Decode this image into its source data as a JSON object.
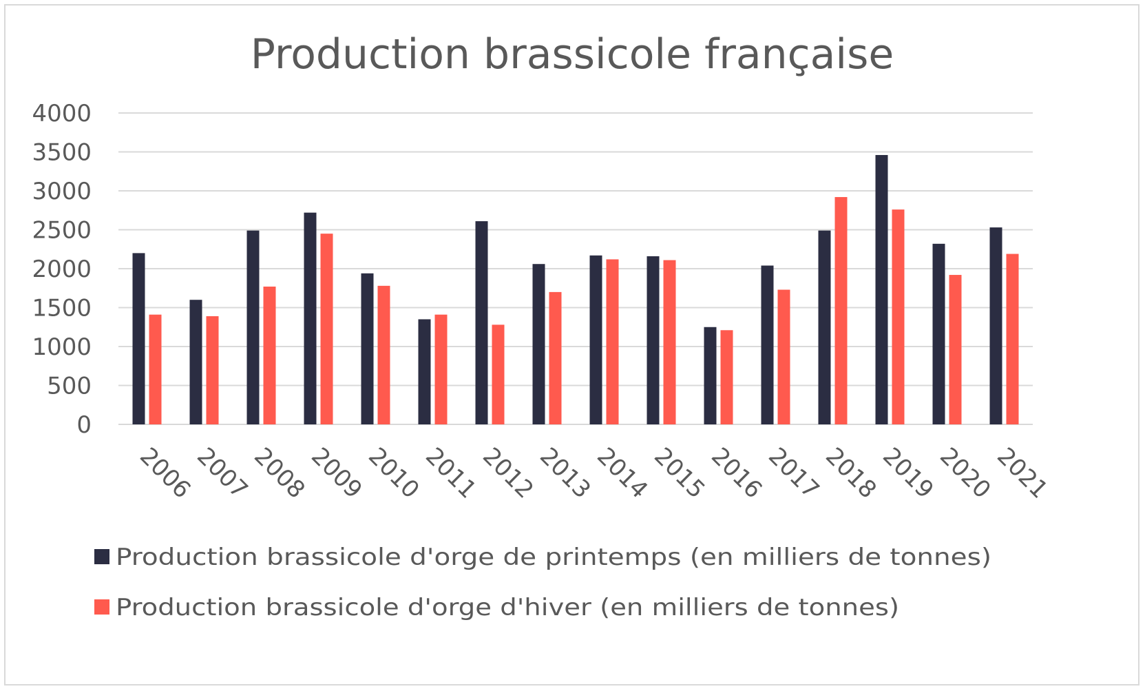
{
  "chart_data": {
    "type": "bar",
    "title": "Production brassicole française",
    "xlabel": "",
    "ylabel": "",
    "ylim": [
      0,
      4000
    ],
    "yticks": [
      "0",
      "500",
      "1000",
      "1500",
      "2000",
      "2500",
      "3000",
      "3500",
      "4000"
    ],
    "grid": true,
    "legend_position": "bottom",
    "categories": [
      "2006",
      "2007",
      "2008",
      "2009",
      "2010",
      "2011",
      "2012",
      "2013",
      "2014",
      "2015",
      "2016",
      "2017",
      "2018",
      "2019",
      "2020",
      "2021"
    ],
    "series": [
      {
        "name": "Production brassicole d'orge de printemps (en milliers de tonnes)",
        "color": "#2b2d42",
        "values": [
          2200,
          1600,
          2490,
          2720,
          1940,
          1350,
          2610,
          2060,
          2170,
          2160,
          1250,
          2040,
          2490,
          3460,
          2320,
          2530
        ]
      },
      {
        "name": "Production brassicole d'orge d'hiver (en milliers de tonnes)",
        "color": "#ff5a4e",
        "values": [
          1410,
          1390,
          1770,
          2450,
          1780,
          1410,
          1280,
          1700,
          2120,
          2110,
          1210,
          1730,
          2920,
          2760,
          1920,
          2190
        ]
      }
    ]
  }
}
